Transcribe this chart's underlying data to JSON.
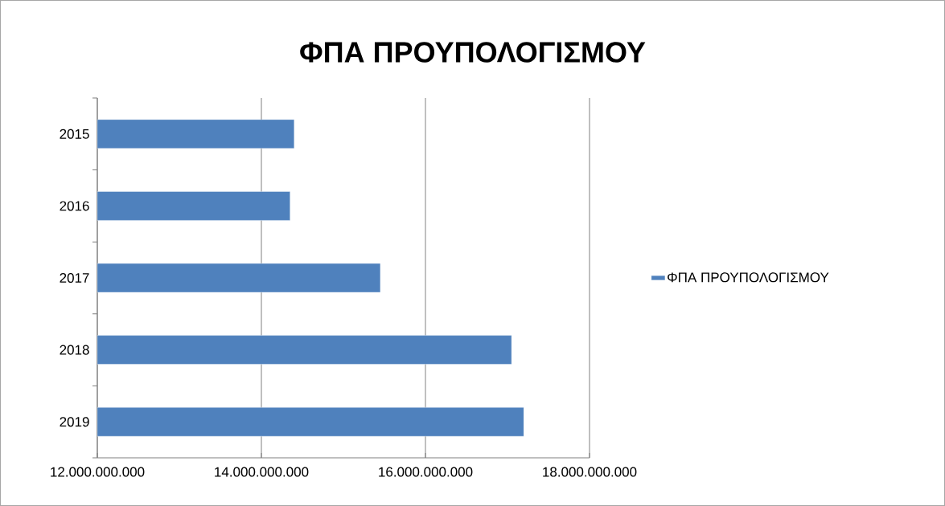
{
  "chart_data": {
    "type": "bar",
    "orientation": "horizontal",
    "title": "ΦΠΑ ΠΡΟΥΠΟΛΟΓΙΣΜΟΥ",
    "categories": [
      "2015",
      "2016",
      "2017",
      "2018",
      "2019"
    ],
    "series": [
      {
        "name": "ΦΠΑ ΠΡΟΥΠΟΛΟΓΙΣΜΟΥ",
        "color": "#4f81bd",
        "values": [
          14400000000,
          14350000000,
          15450000000,
          17050000000,
          17200000000
        ]
      }
    ],
    "xlim": [
      12000000000,
      18000000000
    ],
    "xticks": [
      {
        "value": 12000000000,
        "label": "12.000.000.000"
      },
      {
        "value": 14000000000,
        "label": "14.000.000.000"
      },
      {
        "value": 16000000000,
        "label": "16.000.000.000"
      },
      {
        "value": 18000000000,
        "label": "18.000.000.000"
      }
    ],
    "grid": "x",
    "legend": "right"
  }
}
